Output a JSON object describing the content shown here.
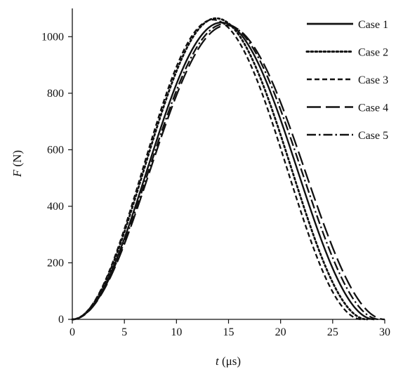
{
  "chart_data": {
    "type": "line",
    "title": "",
    "xlabel_var": "t",
    "xlabel_unit": " (μs)",
    "ylabel_var": "F",
    "ylabel_unit": " (N)",
    "xlim": [
      0,
      30
    ],
    "ylim": [
      0,
      1100
    ],
    "xticks": [
      "0",
      "5",
      "10",
      "15",
      "20",
      "25",
      "30"
    ],
    "xtick_values": [
      0,
      5,
      10,
      15,
      20,
      25,
      30
    ],
    "yticks": [
      "0",
      "200",
      "400",
      "600",
      "800",
      "1000"
    ],
    "ytick_values": [
      0,
      200,
      400,
      600,
      800,
      1000
    ],
    "grid": false,
    "legend_position": "top-right",
    "line_color": "#111111",
    "series": [
      {
        "name": "Case 1",
        "style": "solid",
        "peak_t": 14.3,
        "peak_f": 1050,
        "end_t": 29.0
      },
      {
        "name": "Case 2",
        "style": "dotted",
        "peak_t": 13.8,
        "peak_f": 1065,
        "end_t": 28.3
      },
      {
        "name": "Case 3",
        "style": "dashed",
        "peak_t": 13.5,
        "peak_f": 1060,
        "end_t": 27.8
      },
      {
        "name": "Case 4",
        "style": "longdash",
        "peak_t": 14.8,
        "peak_f": 1040,
        "end_t": 30.0
      },
      {
        "name": "Case 5",
        "style": "dashdot",
        "peak_t": 14.6,
        "peak_f": 1045,
        "end_t": 29.5
      }
    ]
  }
}
